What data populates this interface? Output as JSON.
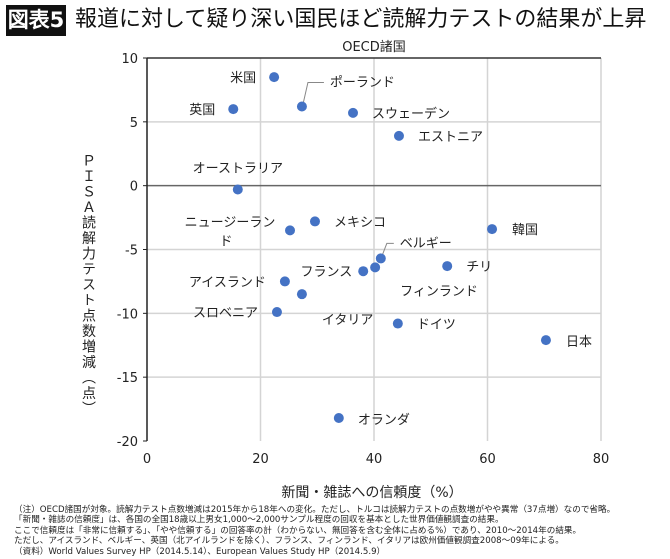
{
  "header": {
    "badge": "図表5",
    "title": "報道に対して疑り深い国民ほど読解力テストの結果が上昇"
  },
  "chart_data": {
    "type": "scatter",
    "title": "OECD諸国",
    "xlabel": "新聞・雑誌への信頼度（%）",
    "ylabel": "ＰＩＳＡ読解力テスト点数増減（点）",
    "xlim": [
      0,
      80
    ],
    "ylim": [
      -20,
      10
    ],
    "xticks": [
      "0",
      "20",
      "40",
      "60",
      "80"
    ],
    "yticks": [
      "10",
      "5",
      "0",
      "-5",
      "-10",
      "-15",
      "-20"
    ],
    "grid": true,
    "marker_color": "#4472C4",
    "points": [
      {
        "label": "米国",
        "x": 22.4,
        "y": 8.5
      },
      {
        "label": "ポーランド",
        "x": 27.3,
        "y": 6.2
      },
      {
        "label": "英国",
        "x": 15.2,
        "y": 6.0
      },
      {
        "label": "スウェーデン",
        "x": 36.3,
        "y": 5.7
      },
      {
        "label": "エストニア",
        "x": 44.4,
        "y": 3.9
      },
      {
        "label": "オーストラリア",
        "x": 16.0,
        "y": -0.3
      },
      {
        "label": "メキシコ",
        "x": 29.6,
        "y": -2.8
      },
      {
        "label": "ニュージーランド",
        "x": 25.2,
        "y": -3.5
      },
      {
        "label": "韓国",
        "x": 60.8,
        "y": -3.4
      },
      {
        "label": "ベルギー",
        "x": 41.2,
        "y": -5.7
      },
      {
        "label": "フィンランド",
        "x": 40.2,
        "y": -6.4
      },
      {
        "label": "フランス",
        "x": 38.1,
        "y": -6.7
      },
      {
        "label": "チリ",
        "x": 52.9,
        "y": -6.3
      },
      {
        "label": "アイスランド",
        "x": 24.3,
        "y": -7.5
      },
      {
        "label": "イタリア",
        "x": 27.3,
        "y": -8.5
      },
      {
        "label": "スロベニア",
        "x": 22.9,
        "y": -9.9
      },
      {
        "label": "ドイツ",
        "x": 44.2,
        "y": -10.8
      },
      {
        "label": "日本",
        "x": 70.3,
        "y": -12.1
      },
      {
        "label": "オランダ",
        "x": 33.8,
        "y": -18.2
      }
    ]
  },
  "notes": [
    "（注）OECD諸国が対象。読解力テスト点数増減は2015年から18年への変化。ただし、トルコは読解力テストの点数増がやや異常（37点増）なので省略。",
    "「新聞・雑誌の信頼度」は、各国の全国18歳以上男女1,000～2,000サンプル程度の回収を基本とした世界価値観調査の結果。",
    "ここで信頼度は「非常に信頼する」、「やや信頼する」の回答率の計（わからない、無回答を含む全体に占める%）であり、2010～2014年の結果。",
    "ただし、アイスランド、ベルギー、英国（北アイルランドを除く）、フランス、フィンランド、イタリアは欧州価値観調査2008～09年による。",
    "（資料）World Values Survey HP（2014.5.14）、European Values Study HP（2014.5.9）"
  ]
}
